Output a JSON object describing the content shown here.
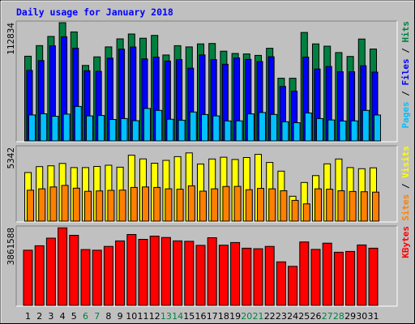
{
  "chart_data": {
    "type": "bar",
    "title": "Daily usage for January 2018",
    "days": [
      "1",
      "2",
      "3",
      "4",
      "5",
      "6",
      "7",
      "8",
      "9",
      "10",
      "11",
      "12",
      "13",
      "14",
      "15",
      "16",
      "17",
      "18",
      "19",
      "20",
      "21",
      "22",
      "23",
      "24",
      "25",
      "26",
      "27",
      "28",
      "29",
      "30",
      "31"
    ],
    "weekend_days": [
      "6",
      "7",
      "13",
      "14",
      "20",
      "21",
      "27",
      "28"
    ],
    "panels": [
      {
        "id": "hits",
        "ymax": 112834,
        "ymax_label": "112834",
        "right_label": [
          {
            "text": "Pages",
            "color": "#00c0ff"
          },
          {
            "text": " / ",
            "color": "#000000"
          },
          {
            "text": "Files",
            "color": "#0000ff"
          },
          {
            "text": " / ",
            "color": "#000000"
          },
          {
            "text": "Hits",
            "color": "#008040"
          }
        ],
        "series": [
          {
            "name": "Hits",
            "color": "#008040",
            "values": [
              80800,
              91000,
              99700,
              112800,
              104000,
              72000,
              80200,
              89700,
              97400,
              102000,
              98000,
              100700,
              82000,
              90900,
              89700,
              92600,
              93000,
              85600,
              83500,
              83000,
              81600,
              88400,
              59800,
              59800,
              103500,
              92600,
              90400,
              84300,
              80600,
              97200,
              87700
            ]
          },
          {
            "name": "Files",
            "color": "#0000ff",
            "values": [
              67300,
              76700,
              90700,
              99400,
              88500,
              67000,
              66400,
              79000,
              87600,
              89600,
              78300,
              80000,
              76200,
              77600,
              69400,
              82100,
              77600,
              73200,
              79200,
              77800,
              75700,
              80300,
              52000,
              47400,
              80000,
              68600,
              71000,
              66000,
              66000,
              71700,
              65700
            ]
          },
          {
            "name": "Pages",
            "color": "#00c0ff",
            "values": [
              24800,
              25900,
              23600,
              25600,
              32900,
              23900,
              24300,
              20500,
              21300,
              19300,
              31000,
              29100,
              20700,
              19800,
              27600,
              25200,
              23900,
              19100,
              19200,
              25800,
              27100,
              25300,
              18300,
              17400,
              26700,
              21300,
              20000,
              19000,
              19200,
              29100,
              24700
            ]
          }
        ]
      },
      {
        "id": "visits",
        "ymax": 5342,
        "ymax_label": "5342",
        "right_label": [
          {
            "text": "Sites",
            "color": "#ff8000"
          },
          {
            "text": " / ",
            "color": "#000000"
          },
          {
            "text": "Visits",
            "color": "#ffff00"
          }
        ],
        "series": [
          {
            "name": "Visits",
            "color": "#ffff00",
            "values": [
              3520,
              3950,
              4010,
              4180,
              3880,
              3880,
              3960,
              4050,
              3910,
              4780,
              4510,
              4200,
              4400,
              4670,
              4940,
              4140,
              4500,
              4630,
              4470,
              4610,
              4840,
              4250,
              3620,
              1800,
              2800,
              3300,
              4150,
              4500,
              3880,
              3800,
              3860
            ]
          },
          {
            "name": "Sites",
            "color": "#ff8000",
            "values": [
              2240,
              2340,
              2480,
              2590,
              2390,
              2160,
              2190,
              2230,
              2250,
              2440,
              2480,
              2440,
              2340,
              2310,
              2560,
              2170,
              2340,
              2510,
              2520,
              2280,
              2370,
              2340,
              2200,
              1500,
              1250,
              2340,
              2310,
              2200,
              2150,
              2130,
              2100
            ]
          }
        ]
      },
      {
        "id": "kbytes",
        "ymax": 3861588,
        "ymax_label": "3861588",
        "right_label": [
          {
            "text": "KBytes",
            "color": "#ff0000"
          }
        ],
        "series": [
          {
            "name": "KBytes",
            "color": "#ff0000",
            "values": [
              2740000,
              2960000,
              3340000,
              3850000,
              3480000,
              2770000,
              2740000,
              2930000,
              3200000,
              3520000,
              3280000,
              3440000,
              3370000,
              3200000,
              3180000,
              2980000,
              3360000,
              2990000,
              3120000,
              2840000,
              2810000,
              2930000,
              2160000,
              1940000,
              3150000,
              2780000,
              3090000,
              2640000,
              2680000,
              3000000,
              2840000
            ]
          }
        ]
      }
    ]
  }
}
